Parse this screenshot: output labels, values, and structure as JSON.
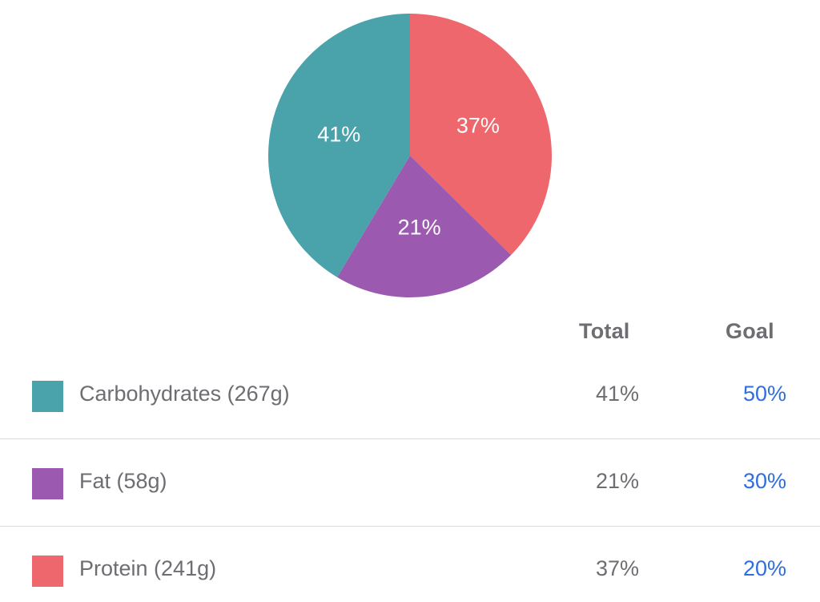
{
  "chart_data": {
    "type": "pie",
    "slices": [
      {
        "label": "37%",
        "value": 37,
        "color": "#ee676d",
        "name": "Protein"
      },
      {
        "label": "21%",
        "value": 21,
        "color": "#9b59b0",
        "name": "Fat"
      },
      {
        "label": "41%",
        "value": 41,
        "color": "#4aa2ab",
        "name": "Carbohydrates"
      }
    ]
  },
  "table": {
    "headers": {
      "total": "Total",
      "goal": "Goal"
    },
    "rows": [
      {
        "label": "Carbohydrates (267g)",
        "total": "41%",
        "goal": "50%",
        "color": "#4aa2ab"
      },
      {
        "label": "Fat (58g)",
        "total": "21%",
        "goal": "30%",
        "color": "#9b59b0"
      },
      {
        "label": "Protein (241g)",
        "total": "37%",
        "goal": "20%",
        "color": "#ee676d"
      }
    ]
  }
}
